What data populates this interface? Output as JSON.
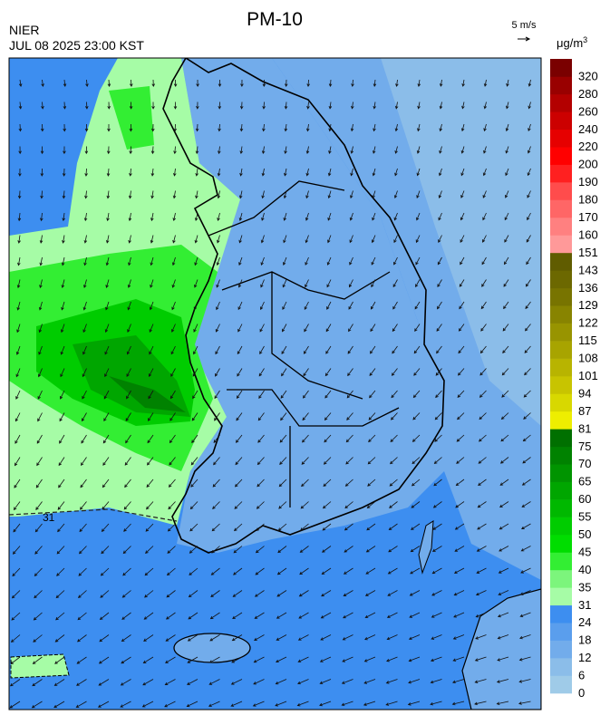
{
  "header": {
    "title": "PM-10",
    "agency": "NIER",
    "datetime": "JUL 08 2025 23:00 KST",
    "wind_scale": "5 m/s",
    "unit": "μg/m",
    "unit_exponent": "3"
  },
  "map": {
    "contour_label": "31"
  },
  "legend": {
    "levels": [
      {
        "value": 0,
        "color": "#9fcbe8"
      },
      {
        "value": 6,
        "color": "#8bbde9"
      },
      {
        "value": 12,
        "color": "#72aceb"
      },
      {
        "value": 18,
        "color": "#5a9eed"
      },
      {
        "value": 24,
        "color": "#3d8ef0"
      },
      {
        "value": 31,
        "color": "#a6fca6"
      },
      {
        "value": 35,
        "color": "#7cf57c"
      },
      {
        "value": 40,
        "color": "#33ee33"
      },
      {
        "value": 45,
        "color": "#00dd00"
      },
      {
        "value": 50,
        "color": "#00cc00"
      },
      {
        "value": 55,
        "color": "#00b800"
      },
      {
        "value": 60,
        "color": "#00a600"
      },
      {
        "value": 65,
        "color": "#009400"
      },
      {
        "value": 70,
        "color": "#008200"
      },
      {
        "value": 75,
        "color": "#007000"
      },
      {
        "value": 81,
        "color": "#eeee00"
      },
      {
        "value": 87,
        "color": "#d8d800"
      },
      {
        "value": 94,
        "color": "#c8c400"
      },
      {
        "value": 101,
        "color": "#b8b400"
      },
      {
        "value": 108,
        "color": "#a8a400"
      },
      {
        "value": 115,
        "color": "#989400"
      },
      {
        "value": 122,
        "color": "#888400"
      },
      {
        "value": 129,
        "color": "#787400"
      },
      {
        "value": 136,
        "color": "#6c6800"
      },
      {
        "value": 143,
        "color": "#605c00"
      },
      {
        "value": 151,
        "color": "#ff9999"
      },
      {
        "value": 160,
        "color": "#ff8080"
      },
      {
        "value": 170,
        "color": "#ff6666"
      },
      {
        "value": 180,
        "color": "#ff4c4c"
      },
      {
        "value": 190,
        "color": "#ff2020"
      },
      {
        "value": 200,
        "color": "#ff0000"
      },
      {
        "value": 220,
        "color": "#e60000"
      },
      {
        "value": 240,
        "color": "#cc0000"
      },
      {
        "value": 260,
        "color": "#b30000"
      },
      {
        "value": 280,
        "color": "#990000"
      },
      {
        "value": 320,
        "color": "#7a0000"
      }
    ]
  }
}
